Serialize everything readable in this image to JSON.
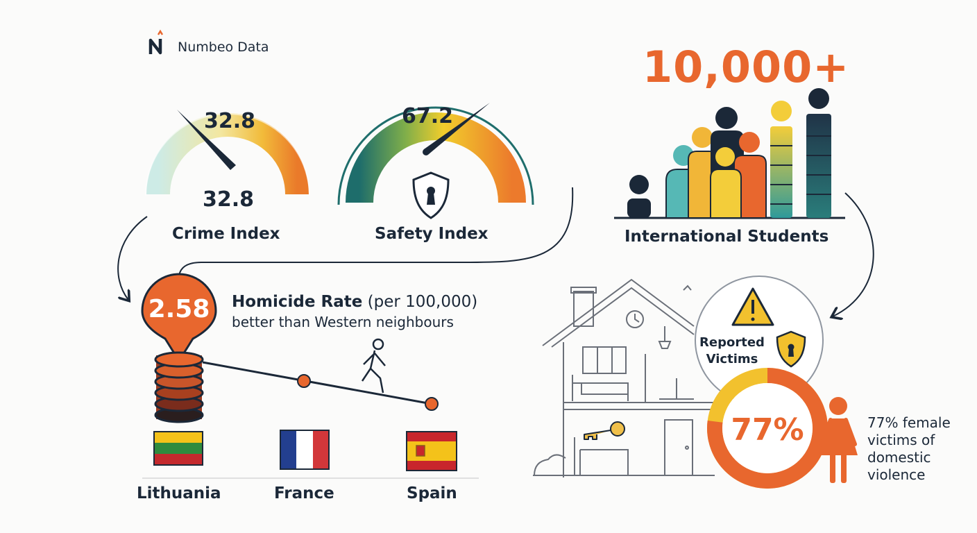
{
  "source": {
    "label": "Numbeo Data",
    "logo_icon": "numbeo-logo-icon"
  },
  "crime": {
    "value_top": "32.8",
    "value_bottom": "32.8",
    "label": "Crime Index",
    "level": 0.328
  },
  "safety": {
    "value": "67.2",
    "label": "Safety Index",
    "level": 0.672,
    "icon": "shield-lock-icon"
  },
  "students": {
    "count": "10,000+",
    "label": "International Students",
    "icon": "people-group-icon"
  },
  "homicide": {
    "value": "2.58",
    "title_bold": "Homicide Rate",
    "title_rest": " (per 100,000)",
    "subtitle": "better than Western neighbours",
    "icon": "walking-person-icon"
  },
  "countries": [
    {
      "name": "Lithuania",
      "flag": "lithuania-flag-icon"
    },
    {
      "name": "France",
      "flag": "france-flag-icon"
    },
    {
      "name": "Spain",
      "flag": "spain-flag-icon"
    }
  ],
  "victims": {
    "label": "Reported Victims",
    "percent": "77%",
    "fraction": 0.77,
    "description": "77% female victims of domestic violence",
    "icons": [
      "warning-icon",
      "shield-lock-icon",
      "woman-icon",
      "house-icon",
      "key-icon"
    ]
  },
  "colors": {
    "orange": "#e8672e",
    "yellow": "#f2c12e",
    "teal": "#2f7d7e",
    "navy": "#1b2838",
    "light_teal": "#bfe3de"
  }
}
